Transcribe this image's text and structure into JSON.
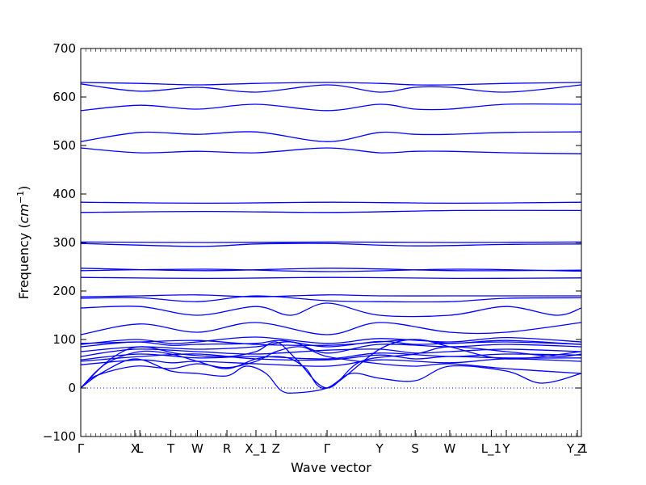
{
  "chart_data": {
    "type": "line",
    "title": "",
    "xlabel": "Wave vector",
    "ylabel_text": "Frequency (",
    "ylabel_unit": "cm",
    "ylabel_exp": "−1",
    "ylabel_close": ")",
    "ylim": [
      -100,
      700
    ],
    "yticks": [
      -100,
      0,
      100,
      200,
      300,
      400,
      500,
      600,
      700
    ],
    "xlim": [
      0,
      1
    ],
    "xticks": [
      {
        "label": "Γ",
        "x": 0.0
      },
      {
        "label": "X",
        "x": 0.108
      },
      {
        "label": "L",
        "x": 0.118
      },
      {
        "label": "T",
        "x": 0.18
      },
      {
        "label": "W",
        "x": 0.233
      },
      {
        "label": "R",
        "x": 0.292
      },
      {
        "label": "X_1",
        "x": 0.35
      },
      {
        "label": "Z",
        "x": 0.39
      },
      {
        "label": "Γ",
        "x": 0.492
      },
      {
        "label": "Y",
        "x": 0.597
      },
      {
        "label": "S",
        "x": 0.668
      },
      {
        "label": "W",
        "x": 0.737
      },
      {
        "label": "L_1",
        "x": 0.82
      },
      {
        "label": "Y",
        "x": 0.85
      },
      {
        "label": "Y_1",
        "x": 0.992
      },
      {
        "label": "Z",
        "x": 1.0
      }
    ],
    "zero_line": 0,
    "line_color": "#0000ff",
    "series": [
      {
        "x": [
          0,
          0.118,
          0.233,
          0.35,
          0.492,
          0.597,
          0.668,
          0.737,
          0.85,
          1
        ],
        "values": [
          630,
          628,
          625,
          628,
          630,
          628,
          625,
          625,
          628,
          630
        ]
      },
      {
        "x": [
          0,
          0.118,
          0.233,
          0.35,
          0.492,
          0.597,
          0.668,
          0.737,
          0.85,
          1
        ],
        "values": [
          627,
          612,
          620,
          610,
          625,
          610,
          620,
          620,
          610,
          625
        ]
      },
      {
        "x": [
          0,
          0.118,
          0.233,
          0.35,
          0.492,
          0.597,
          0.668,
          0.737,
          0.85,
          1
        ],
        "values": [
          572,
          583,
          575,
          585,
          572,
          585,
          575,
          575,
          585,
          585
        ]
      },
      {
        "x": [
          0,
          0.118,
          0.233,
          0.35,
          0.492,
          0.597,
          0.668,
          0.737,
          0.85,
          1
        ],
        "values": [
          508,
          527,
          523,
          528,
          508,
          527,
          523,
          523,
          527,
          528
        ]
      },
      {
        "x": [
          0,
          0.118,
          0.233,
          0.35,
          0.492,
          0.597,
          0.668,
          0.737,
          0.85,
          1
        ],
        "values": [
          495,
          485,
          488,
          485,
          495,
          485,
          488,
          488,
          485,
          483
        ]
      },
      {
        "x": [
          0,
          0.25,
          0.5,
          0.75,
          1
        ],
        "values": [
          383,
          381,
          383,
          381,
          383
        ]
      },
      {
        "x": [
          0,
          0.25,
          0.5,
          0.75,
          1
        ],
        "values": [
          362,
          364,
          362,
          366,
          366
        ]
      },
      {
        "x": [
          0,
          0.25,
          0.5,
          0.75,
          1
        ],
        "values": [
          301,
          300,
          301,
          300,
          301
        ]
      },
      {
        "x": [
          0,
          0.233,
          0.35,
          0.492,
          0.668,
          0.85,
          1
        ],
        "values": [
          298,
          292,
          297,
          298,
          293,
          296,
          297
        ]
      },
      {
        "x": [
          0,
          0.25,
          0.5,
          0.75,
          1
        ],
        "values": [
          247,
          242,
          247,
          242,
          243
        ]
      },
      {
        "x": [
          0,
          0.25,
          0.5,
          0.75,
          1
        ],
        "values": [
          242,
          245,
          240,
          245,
          241
        ]
      },
      {
        "x": [
          0,
          0.25,
          0.5,
          0.75,
          1
        ],
        "values": [
          228,
          226,
          228,
          226,
          227
        ]
      },
      {
        "x": [
          0,
          0.118,
          0.233,
          0.35,
          0.492,
          0.597,
          0.737,
          0.85,
          1
        ],
        "values": [
          188,
          190,
          192,
          188,
          192,
          190,
          190,
          190,
          190
        ]
      },
      {
        "x": [
          0,
          0.118,
          0.233,
          0.35,
          0.492,
          0.597,
          0.737,
          0.85,
          1
        ],
        "values": [
          185,
          186,
          178,
          190,
          180,
          178,
          178,
          185,
          186
        ]
      },
      {
        "x": [
          0,
          0.118,
          0.233,
          0.35,
          0.42,
          0.492,
          0.597,
          0.737,
          0.85,
          0.95,
          1
        ],
        "values": [
          165,
          168,
          150,
          168,
          150,
          175,
          150,
          150,
          168,
          150,
          165
        ]
      },
      {
        "x": [
          0,
          0.118,
          0.233,
          0.35,
          0.492,
          0.597,
          0.737,
          0.85,
          1
        ],
        "values": [
          110,
          132,
          115,
          135,
          110,
          135,
          115,
          115,
          135
        ]
      },
      {
        "x": [
          0,
          0.108,
          0.18,
          0.233,
          0.35,
          0.492,
          0.597,
          0.737,
          0.85,
          1
        ],
        "values": [
          90,
          100,
          92,
          95,
          105,
          92,
          102,
          95,
          104,
          95
        ]
      },
      {
        "x": [
          0,
          0.108,
          0.18,
          0.233,
          0.35,
          0.4,
          0.492,
          0.597,
          0.668,
          0.737,
          0.85,
          1
        ],
        "values": [
          85,
          95,
          88,
          90,
          92,
          98,
          85,
          96,
          90,
          92,
          95,
          90
        ]
      },
      {
        "x": [
          0,
          0.118,
          0.233,
          0.35,
          0.42,
          0.492,
          0.597,
          0.737,
          0.85,
          1
        ],
        "values": [
          75,
          85,
          80,
          85,
          95,
          72,
          90,
          85,
          90,
          85
        ]
      },
      {
        "x": [
          0,
          0.108,
          0.233,
          0.35,
          0.492,
          0.597,
          0.668,
          0.737,
          0.85,
          1
        ],
        "values": [
          65,
          80,
          75,
          70,
          78,
          80,
          72,
          75,
          80,
          75
        ]
      },
      {
        "x": [
          0,
          0.118,
          0.233,
          0.35,
          0.492,
          0.597,
          0.737,
          0.85,
          1
        ],
        "values": [
          58,
          70,
          62,
          65,
          60,
          72,
          65,
          70,
          68
        ]
      },
      {
        "x": [
          0,
          0.118,
          0.18,
          0.233,
          0.35,
          0.492,
          0.597,
          0.737,
          0.85,
          1
        ],
        "values": [
          48,
          58,
          52,
          55,
          50,
          45,
          58,
          52,
          60,
          55
        ]
      },
      {
        "x": [
          0,
          0.03,
          0.108,
          0.18,
          0.233,
          0.292,
          0.35,
          0.39,
          0.44,
          0.492,
          0.597,
          0.668,
          0.737,
          0.85,
          1
        ],
        "values": [
          0,
          25,
          45,
          40,
          50,
          42,
          55,
          75,
          85,
          65,
          50,
          45,
          50,
          40,
          30
        ]
      },
      {
        "x": [
          0,
          0.04,
          0.108,
          0.18,
          0.233,
          0.292,
          0.33,
          0.37,
          0.4,
          0.43,
          0.492,
          0.54,
          0.597,
          0.668,
          0.737,
          0.85,
          0.92,
          1
        ],
        "values": [
          0,
          30,
          60,
          35,
          30,
          25,
          45,
          30,
          -5,
          -10,
          0,
          30,
          20,
          15,
          45,
          35,
          10,
          30
        ]
      },
      {
        "x": [
          0,
          0.05,
          0.118,
          0.18,
          0.233,
          0.292,
          0.35,
          0.39,
          0.42,
          0.45,
          0.492,
          0.597,
          0.668,
          0.737,
          0.85,
          1
        ],
        "values": [
          0,
          50,
          75,
          70,
          55,
          40,
          60,
          65,
          60,
          40,
          0,
          80,
          100,
          85,
          60,
          75
        ]
      },
      {
        "x": [
          0,
          0.06,
          0.118,
          0.2,
          0.292,
          0.35,
          0.39,
          0.43,
          0.492,
          0.56,
          0.668,
          0.737,
          0.85,
          0.95,
          1
        ],
        "values": [
          0,
          60,
          85,
          70,
          65,
          75,
          95,
          60,
          0,
          55,
          70,
          85,
          75,
          65,
          70
        ]
      },
      {
        "x": [
          0,
          0.12,
          0.233,
          0.35,
          0.492,
          0.597,
          0.668,
          0.737,
          0.85,
          1
        ],
        "values": [
          55,
          65,
          70,
          60,
          58,
          68,
          60,
          65,
          62,
          62
        ]
      },
      {
        "x": [
          0,
          0.12,
          0.233,
          0.35,
          0.492,
          0.597,
          0.668,
          0.737,
          0.85,
          1
        ],
        "values": [
          92,
          95,
          98,
          90,
          88,
          95,
          100,
          92,
          98,
          90
        ]
      }
    ]
  }
}
